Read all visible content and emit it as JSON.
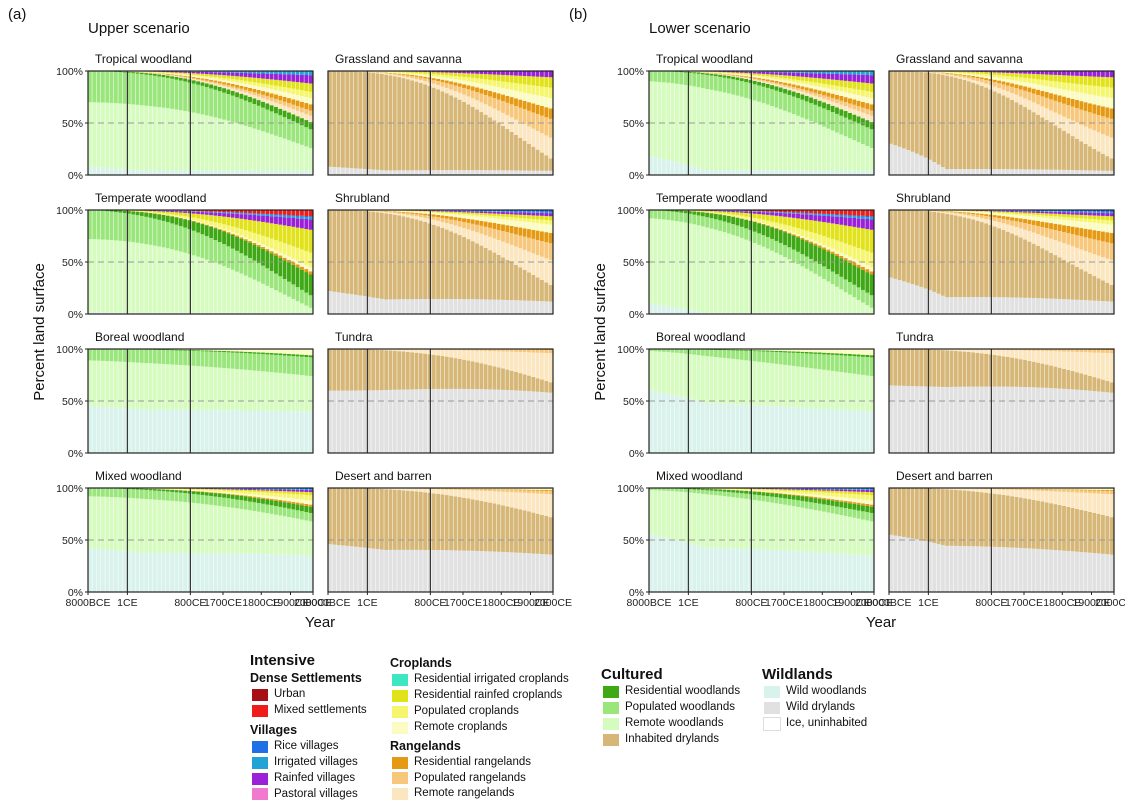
{
  "figure": {
    "left_tag": "(a)",
    "right_tag": "(b)",
    "left_heading": "Upper scenario",
    "right_heading": "Lower scenario",
    "y_axis_label": "Percent land surface",
    "x_axis_label": "Year"
  },
  "legend": {
    "intensive_title": "Intensive",
    "dense_title": "Dense Settlements",
    "villages_title": "Villages",
    "croplands_title": "Croplands",
    "rangelands_title": "Rangelands",
    "cultured_title": "Cultured",
    "wildlands_title": "Wildlands",
    "dense": [
      {
        "label": "Urban",
        "color": "#a50f15"
      },
      {
        "label": "Mixed settlements",
        "color": "#ef1c1c"
      }
    ],
    "villages": [
      {
        "label": "Rice villages",
        "color": "#1f6fe5"
      },
      {
        "label": "Irrigated villages",
        "color": "#21a3d6"
      },
      {
        "label": "Rainfed villages",
        "color": "#9b21d9"
      },
      {
        "label": "Pastoral villages",
        "color": "#ef7ad0"
      }
    ],
    "croplands": [
      {
        "label": "Residential irrigated croplands",
        "color": "#3fe6c2"
      },
      {
        "label": "Residential rainfed croplands",
        "color": "#e2e21a"
      },
      {
        "label": "Populated croplands",
        "color": "#f6f66e"
      },
      {
        "label": "Remote croplands",
        "color": "#fbfbc4"
      }
    ],
    "rangelands": [
      {
        "label": "Residential rangelands",
        "color": "#e69912"
      },
      {
        "label": "Populated rangelands",
        "color": "#f7c77c"
      },
      {
        "label": "Remote rangelands",
        "color": "#fbe6bf"
      }
    ],
    "cultured": [
      {
        "label": "Residential woodlands",
        "color": "#3ea815"
      },
      {
        "label": "Populated woodlands",
        "color": "#9be67c"
      },
      {
        "label": "Remote woodlands",
        "color": "#d6fbbf"
      },
      {
        "label": "Inhabited drylands",
        "color": "#d6b777"
      }
    ],
    "wildlands": [
      {
        "label": "Wild woodlands",
        "color": "#daf2ec"
      },
      {
        "label": "Wild drylands",
        "color": "#e1e1e1"
      },
      {
        "label": "Ice, uninhabited",
        "color": "#ffffff"
      }
    ]
  },
  "chart_data": {
    "type": "area",
    "stacked": true,
    "y_ticks": [
      "0%",
      "50%",
      "100%"
    ],
    "ylim": [
      0,
      100
    ],
    "x_ticks": [
      "8000BCE",
      "1CE",
      "800CE",
      "1700CE",
      "1800CE",
      "1900CE",
      "2000CE"
    ],
    "reference_line": 50,
    "scenarios": [
      {
        "name": "Upper scenario",
        "panels": [
          {
            "title": "Tropical woodland",
            "start": {
              "wildwood": 8,
              "remote_wood": 62,
              "pop_wood": 30
            },
            "end": {
              "wildwood": 4,
              "remote_wood": 22,
              "pop_wood": 18,
              "res_wood": 7,
              "remote_crop": 6,
              "pop_crop": 6,
              "res_rain_crop": 8,
              "remote_range": 6,
              "pop_range": 5,
              "res_range": 6,
              "rainfed_vill": 8,
              "irrig_vill": 4
            }
          },
          {
            "title": "Grassland and savanna",
            "start": {
              "wilddry": 8,
              "inhabited_dry": 92
            },
            "end": {
              "wilddry": 4,
              "inhabited_dry": 12,
              "remote_range": 20,
              "pop_range": 18,
              "res_range": 10,
              "remote_crop": 10,
              "pop_crop": 10,
              "res_rain_crop": 10,
              "rainfed_vill": 6
            }
          },
          {
            "title": "Temperate woodland",
            "start": {
              "wildwood": 2,
              "remote_wood": 70,
              "pop_wood": 28
            },
            "end": {
              "wildwood": 1,
              "remote_wood": 5,
              "pop_wood": 12,
              "res_wood": 20,
              "res_range": 3,
              "remote_crop": 4,
              "pop_crop": 14,
              "res_rain_crop": 22,
              "rainfed_vill": 10,
              "irrig_vill": 2,
              "rice_vill": 1,
              "mixed": 6
            }
          },
          {
            "title": "Shrubland",
            "start": {
              "wilddry": 22,
              "inhabited_dry": 78
            },
            "end": {
              "wilddry": 12,
              "inhabited_dry": 16,
              "remote_range": 24,
              "pop_range": 16,
              "res_range": 10,
              "remote_crop": 8,
              "pop_crop": 4,
              "res_rain_crop": 4,
              "rainfed_vill": 3,
              "irrig_vill": 1,
              "rice_vill": 2
            }
          },
          {
            "title": "Boreal woodland",
            "start": {
              "wildwood": 45,
              "remote_wood": 44,
              "pop_wood": 11
            },
            "end": {
              "wildwood": 40,
              "remote_wood": 34,
              "pop_wood": 18,
              "res_wood": 2,
              "remote_crop": 6
            }
          },
          {
            "title": "Tundra",
            "start": {
              "wilddry": 60,
              "inhabited_dry": 40
            },
            "end": {
              "wilddry": 58,
              "inhabited_dry": 10,
              "remote_range": 28,
              "pop_range": 3,
              "res_range": 1
            }
          },
          {
            "title": "Mixed woodland",
            "start": {
              "wildwood": 42,
              "remote_wood": 50,
              "pop_wood": 8
            },
            "end": {
              "wildwood": 35,
              "remote_wood": 33,
              "pop_wood": 8,
              "res_wood": 6,
              "remote_crop": 4,
              "pop_crop": 5,
              "res_rain_crop": 3,
              "res_range": 2,
              "rainfed_vill": 2,
              "irrig_vill": 1,
              "rice_vill": 1
            }
          },
          {
            "title": "Desert and barren",
            "start": {
              "wilddry": 46,
              "inhabited_dry": 54
            },
            "end": {
              "wilddry": 36,
              "inhabited_dry": 36,
              "remote_range": 22,
              "pop_range": 3,
              "res_range": 1,
              "remote_crop": 1,
              "pop_crop": 1
            }
          }
        ]
      },
      {
        "name": "Lower scenario",
        "panels": [
          {
            "title": "Tropical woodland",
            "start": {
              "wildwood": 18,
              "remote_wood": 72,
              "pop_wood": 10
            },
            "end": {
              "wildwood": 4,
              "remote_wood": 22,
              "pop_wood": 18,
              "res_wood": 7,
              "remote_crop": 6,
              "pop_crop": 6,
              "res_rain_crop": 8,
              "remote_range": 6,
              "pop_range": 5,
              "res_range": 6,
              "rainfed_vill": 8,
              "irrig_vill": 4
            }
          },
          {
            "title": "Grassland and savanna",
            "start": {
              "wilddry": 30,
              "inhabited_dry": 70
            },
            "end": {
              "wilddry": 4,
              "inhabited_dry": 12,
              "remote_range": 20,
              "pop_range": 18,
              "res_range": 10,
              "remote_crop": 10,
              "pop_crop": 10,
              "res_rain_crop": 10,
              "rainfed_vill": 6
            }
          },
          {
            "title": "Temperate woodland",
            "start": {
              "wildwood": 10,
              "remote_wood": 82,
              "pop_wood": 8
            },
            "end": {
              "wildwood": 1,
              "remote_wood": 5,
              "pop_wood": 12,
              "res_wood": 20,
              "res_range": 3,
              "remote_crop": 4,
              "pop_crop": 14,
              "res_rain_crop": 22,
              "rainfed_vill": 10,
              "irrig_vill": 2,
              "rice_vill": 1,
              "mixed": 6
            }
          },
          {
            "title": "Shrubland",
            "start": {
              "wilddry": 35,
              "inhabited_dry": 65
            },
            "end": {
              "wilddry": 12,
              "inhabited_dry": 16,
              "remote_range": 24,
              "pop_range": 16,
              "res_range": 10,
              "remote_crop": 8,
              "pop_crop": 4,
              "res_rain_crop": 4,
              "rainfed_vill": 3,
              "irrig_vill": 1,
              "rice_vill": 2
            }
          },
          {
            "title": "Boreal woodland",
            "start": {
              "wildwood": 60,
              "remote_wood": 38,
              "pop_wood": 2
            },
            "end": {
              "wildwood": 40,
              "remote_wood": 34,
              "pop_wood": 18,
              "res_wood": 2,
              "remote_crop": 6
            }
          },
          {
            "title": "Tundra",
            "start": {
              "wilddry": 65,
              "inhabited_dry": 35
            },
            "end": {
              "wilddry": 58,
              "inhabited_dry": 10,
              "remote_range": 28,
              "pop_range": 3,
              "res_range": 1
            }
          },
          {
            "title": "Mixed woodland",
            "start": {
              "wildwood": 55,
              "remote_wood": 43,
              "pop_wood": 2
            },
            "end": {
              "wildwood": 35,
              "remote_wood": 33,
              "pop_wood": 8,
              "res_wood": 6,
              "remote_crop": 4,
              "pop_crop": 5,
              "res_rain_crop": 3,
              "res_range": 2,
              "rainfed_vill": 2,
              "irrig_vill": 1,
              "rice_vill": 1
            }
          },
          {
            "title": "Desert and barren",
            "start": {
              "wilddry": 55,
              "inhabited_dry": 45
            },
            "end": {
              "wilddry": 36,
              "inhabited_dry": 36,
              "remote_range": 22,
              "pop_range": 3,
              "res_range": 1,
              "remote_crop": 1,
              "pop_crop": 1
            }
          }
        ]
      }
    ],
    "class_colors": {
      "wildwood": "#daf2ec",
      "wilddry": "#e1e1e1",
      "ice": "#ffffff",
      "remote_wood": "#d6fbbf",
      "pop_wood": "#9be67c",
      "res_wood": "#3ea815",
      "inhabited_dry": "#d6b777",
      "remote_range": "#fbe6bf",
      "pop_range": "#f7c77c",
      "res_range": "#e69912",
      "remote_crop": "#fbfbc4",
      "pop_crop": "#f6f66e",
      "res_rain_crop": "#e2e21a",
      "res_irr_crop": "#3fe6c2",
      "pastoral_vill": "#ef7ad0",
      "rainfed_vill": "#9b21d9",
      "irrig_vill": "#21a3d6",
      "rice_vill": "#1f6fe5",
      "mixed": "#ef1c1c",
      "urban": "#a50f15"
    },
    "stack_order": [
      "wildwood",
      "wilddry",
      "remote_wood",
      "pop_wood",
      "res_wood",
      "inhabited_dry",
      "remote_range",
      "pop_range",
      "res_range",
      "remote_crop",
      "pop_crop",
      "res_rain_crop",
      "res_irr_crop",
      "pastoral_vill",
      "rainfed_vill",
      "irrig_vill",
      "rice_vill",
      "mixed",
      "urban"
    ]
  }
}
